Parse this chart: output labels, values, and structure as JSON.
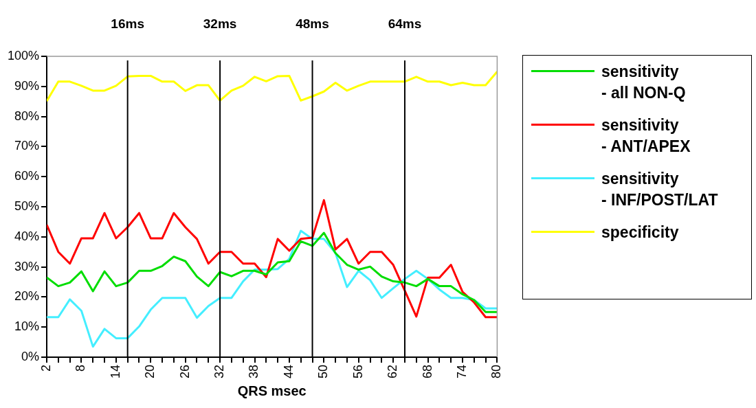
{
  "chart_data": {
    "type": "line",
    "xlabel": "QRS msec",
    "x": [
      2,
      4,
      6,
      8,
      10,
      12,
      14,
      16,
      18,
      20,
      22,
      24,
      26,
      28,
      30,
      32,
      34,
      36,
      38,
      40,
      42,
      44,
      46,
      48,
      50,
      52,
      54,
      56,
      58,
      60,
      62,
      64,
      66,
      68,
      70,
      72,
      74,
      76,
      78,
      80
    ],
    "xlim": [
      2,
      80
    ],
    "xticks": [
      2,
      {
        "value": 4,
        "label": null
      },
      {
        "value": 6,
        "label": null
      },
      8,
      {
        "value": 10,
        "label": null
      },
      {
        "value": 12,
        "label": null
      },
      14,
      {
        "value": 16,
        "label": null
      },
      {
        "value": 18,
        "label": null
      },
      20,
      {
        "value": 22,
        "label": null
      },
      {
        "value": 24,
        "label": null
      },
      26,
      {
        "value": 28,
        "label": null
      },
      {
        "value": 30,
        "label": null
      },
      32,
      {
        "value": 34,
        "label": null
      },
      {
        "value": 36,
        "label": null
      },
      38,
      {
        "value": 40,
        "label": null
      },
      {
        "value": 42,
        "label": null
      },
      44,
      {
        "value": 46,
        "label": null
      },
      {
        "value": 48,
        "label": null
      },
      50,
      {
        "value": 52,
        "label": null
      },
      {
        "value": 54,
        "label": null
      },
      56,
      {
        "value": 58,
        "label": null
      },
      {
        "value": 60,
        "label": null
      },
      62,
      {
        "value": 64,
        "label": null
      },
      {
        "value": 66,
        "label": null
      },
      68,
      {
        "value": 70,
        "label": null
      },
      {
        "value": 72,
        "label": null
      },
      74,
      {
        "value": 76,
        "label": null
      },
      {
        "value": 78,
        "label": null
      },
      80
    ],
    "ylim": [
      0,
      100
    ],
    "yticks": [
      {
        "value": 0,
        "label": "0%"
      },
      {
        "value": 10,
        "label": "10%"
      },
      {
        "value": 20,
        "label": "20%"
      },
      {
        "value": 30,
        "label": "30%"
      },
      {
        "value": 40,
        "label": "40%"
      },
      {
        "value": 50,
        "label": "50%"
      },
      {
        "value": 60,
        "label": "60%"
      },
      {
        "value": 70,
        "label": "70%"
      },
      {
        "value": 80,
        "label": "80%"
      },
      {
        "value": 90,
        "label": "90%"
      },
      {
        "value": 100,
        "label": "100%"
      }
    ],
    "series": [
      {
        "name": "sensitivity\n- all NON-Q",
        "color": "#00dd00",
        "values": [
          26.5,
          23.6,
          24.8,
          28.5,
          21.9,
          28.5,
          23.6,
          24.8,
          28.7,
          28.7,
          30.3,
          33.4,
          31.9,
          26.8,
          23.6,
          28.3,
          26.9,
          28.7,
          28.7,
          27.5,
          31.5,
          31.9,
          38.5,
          37,
          41.3,
          34.6,
          30.7,
          29.1,
          30.1,
          26.8,
          25.2,
          24.8,
          23.6,
          26,
          23.6,
          23.6,
          20.9,
          19,
          15,
          15
        ]
      },
      {
        "name": "sensitivity\n- ANT/APEX",
        "color": "#ff0000",
        "values": [
          44,
          35,
          31.1,
          39.5,
          39.5,
          47.9,
          39.5,
          43.2,
          47.9,
          39.5,
          39.5,
          47.9,
          43.2,
          39.3,
          31.1,
          35,
          35,
          31.1,
          31.1,
          26.6,
          39.3,
          35.4,
          39.3,
          39.7,
          52.2,
          35.8,
          39.3,
          31.1,
          35,
          35,
          30.7,
          22.1,
          13.5,
          26.4,
          26.4,
          30.7,
          21.7,
          18.2,
          13.3,
          13.3
        ]
      },
      {
        "name": "sensitivity\n- INF/POST/LAT",
        "color": "#44eeff",
        "values": [
          13.3,
          13.3,
          19.2,
          15.4,
          3.5,
          9.4,
          6.3,
          6.3,
          10.2,
          15.8,
          19.7,
          19.7,
          19.7,
          13.1,
          17,
          19.7,
          19.7,
          25.2,
          29.1,
          29.1,
          29.3,
          32.7,
          42,
          39.3,
          39.3,
          34.6,
          23.3,
          28.7,
          25.6,
          19.7,
          22.9,
          26,
          28.7,
          26,
          22.5,
          19.7,
          19.7,
          19,
          16.2,
          16.2
        ]
      },
      {
        "name": "specificity",
        "color": "#ffff00",
        "values": [
          85.1,
          91.6,
          91.6,
          90.2,
          88.6,
          88.6,
          90.2,
          93.3,
          93.5,
          93.5,
          91.6,
          91.6,
          88.5,
          90.4,
          90.4,
          85.3,
          88.6,
          90.2,
          93.2,
          91.7,
          93.4,
          93.5,
          85.3,
          86.7,
          88.3,
          91.2,
          88.6,
          90.2,
          91.6,
          91.6,
          91.6,
          91.6,
          93.2,
          91.6,
          91.6,
          90.4,
          91.2,
          90.4,
          90.4,
          94.9
        ]
      }
    ],
    "ref_lines": [
      {
        "axis": "x",
        "value": 16,
        "label": "16ms",
        "color": "#000000"
      },
      {
        "axis": "x",
        "value": 32,
        "label": "32ms",
        "color": "#000000"
      },
      {
        "axis": "x",
        "value": 48,
        "label": "48ms",
        "color": "#000000"
      },
      {
        "axis": "x",
        "value": 64,
        "label": "64ms",
        "color": "#000000"
      }
    ],
    "legend": "right",
    "grid": false,
    "marker": "none",
    "line_style": "solid"
  }
}
